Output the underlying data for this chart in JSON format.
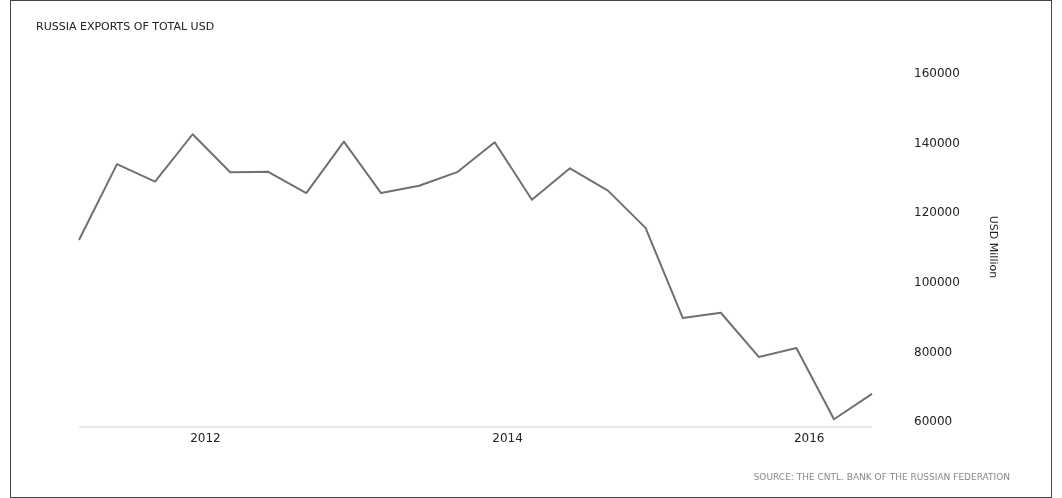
{
  "chart_data": {
    "type": "line",
    "title": "RUSSIA EXPORTS OF TOTAL USD",
    "ylabel": "USD Million",
    "annotations": [
      "SOURCE: THE CNTL. BANK OF THE RUSSIAN FEDERATION"
    ],
    "x": [
      "2011-03",
      "2011-06",
      "2011-09",
      "2011-12",
      "2012-03",
      "2012-06",
      "2012-09",
      "2012-12",
      "2013-03",
      "2013-06",
      "2013-09",
      "2013-12",
      "2014-03",
      "2014-06",
      "2014-09",
      "2014-12",
      "2015-03",
      "2015-06",
      "2015-09",
      "2015-12",
      "2016-03",
      "2016-06"
    ],
    "series": [
      {
        "color": "#707070",
        "values": [
          112000,
          133800,
          128800,
          142400,
          131500,
          131600,
          125500,
          140300,
          125500,
          127600,
          131500,
          140100,
          123600,
          132600,
          126200,
          115500,
          89600,
          91100,
          78400,
          81000,
          60500,
          67800
        ]
      }
    ],
    "xlim": [
      "2011-03",
      "2016-06"
    ],
    "xticks": [
      {
        "value": "2012-01",
        "label": "2012"
      },
      {
        "value": "2014-01",
        "label": "2014"
      },
      {
        "value": "2016-01",
        "label": "2016"
      }
    ],
    "ylim": [
      60000,
      160000
    ],
    "yticks": [
      60000,
      80000,
      100000,
      120000,
      140000,
      160000
    ],
    "grid": false,
    "marker": "none",
    "line_style": "solid"
  }
}
